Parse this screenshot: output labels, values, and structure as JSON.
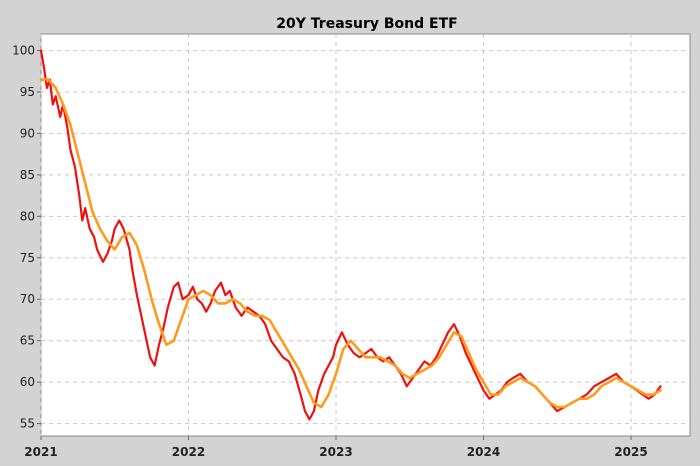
{
  "chart_data": {
    "type": "line",
    "title": "20Y Treasury Bond ETF",
    "xlabel": "",
    "ylabel": "",
    "xlim": [
      2021.0,
      2025.4
    ],
    "ylim": [
      53.5,
      102
    ],
    "x_ticks": [
      "2021",
      "2022",
      "2023",
      "2024",
      "2025"
    ],
    "y_ticks": [
      100,
      95,
      90,
      85,
      80,
      75,
      70,
      65,
      60,
      55
    ],
    "grid": true,
    "legend": "none",
    "colors": {
      "background": "#d3d3d3",
      "plot_area": "#ffffff",
      "grid": "#c8c8c8",
      "price": "#ee1111",
      "moving_average": "#ff9a1a"
    },
    "series": [
      {
        "style": "price",
        "x": [
          2021.0,
          2021.02,
          2021.04,
          2021.06,
          2021.08,
          2021.1,
          2021.13,
          2021.15,
          2021.18,
          2021.2,
          2021.23,
          2021.26,
          2021.28,
          2021.3,
          2021.33,
          2021.36,
          2021.38,
          2021.42,
          2021.45,
          2021.48,
          2021.5,
          2021.53,
          2021.56,
          2021.6,
          2021.62,
          2021.65,
          2021.68,
          2021.71,
          2021.74,
          2021.77,
          2021.8,
          2021.83,
          2021.86,
          2021.9,
          2021.93,
          2021.96,
          2022.0,
          2022.03,
          2022.06,
          2022.09,
          2022.12,
          2022.15,
          2022.18,
          2022.22,
          2022.25,
          2022.28,
          2022.32,
          2022.36,
          2022.4,
          2022.44,
          2022.48,
          2022.52,
          2022.56,
          2022.6,
          2022.64,
          2022.68,
          2022.72,
          2022.76,
          2022.79,
          2022.82,
          2022.85,
          2022.88,
          2022.92,
          2022.95,
          2022.98,
          2023.0,
          2023.04,
          2023.08,
          2023.12,
          2023.16,
          2023.2,
          2023.24,
          2023.28,
          2023.32,
          2023.36,
          2023.4,
          2023.44,
          2023.48,
          2023.52,
          2023.56,
          2023.6,
          2023.64,
          2023.68,
          2023.72,
          2023.76,
          2023.8,
          2023.84,
          2023.88,
          2023.92,
          2023.96,
          2024.0,
          2024.04,
          2024.08,
          2024.12,
          2024.16,
          2024.2,
          2024.25,
          2024.3,
          2024.35,
          2024.4,
          2024.45,
          2024.5,
          2024.55,
          2024.6,
          2024.65,
          2024.7,
          2024.75,
          2024.8,
          2024.85,
          2024.9,
          2024.95,
          2025.0,
          2025.04,
          2025.08,
          2025.12,
          2025.16,
          2025.2
        ],
        "y": [
          100.0,
          98.0,
          95.5,
          96.5,
          93.5,
          94.5,
          92.0,
          93.5,
          90.5,
          88.0,
          86.0,
          82.5,
          79.5,
          81.0,
          78.5,
          77.5,
          76.0,
          74.5,
          75.5,
          77.0,
          78.5,
          79.5,
          78.5,
          76.0,
          73.5,
          70.5,
          68.0,
          65.5,
          63.0,
          62.0,
          64.5,
          66.5,
          69.0,
          71.5,
          72.0,
          70.0,
          70.5,
          71.5,
          70.0,
          69.5,
          68.5,
          69.5,
          71.0,
          72.0,
          70.5,
          71.0,
          69.0,
          68.0,
          69.0,
          68.5,
          68.0,
          67.0,
          65.0,
          64.0,
          63.0,
          62.5,
          61.0,
          58.5,
          56.5,
          55.5,
          56.5,
          59.0,
          61.0,
          62.0,
          63.0,
          64.5,
          66.0,
          64.5,
          63.5,
          63.0,
          63.5,
          64.0,
          63.0,
          62.5,
          63.0,
          62.0,
          61.0,
          59.5,
          60.5,
          61.5,
          62.5,
          62.0,
          63.0,
          64.5,
          66.0,
          67.0,
          65.5,
          63.5,
          62.0,
          60.5,
          59.0,
          58.0,
          58.5,
          59.0,
          60.0,
          60.5,
          61.0,
          60.0,
          59.5,
          58.5,
          57.5,
          56.5,
          57.0,
          57.5,
          58.0,
          58.5,
          59.5,
          60.0,
          60.5,
          61.0,
          60.0,
          59.5,
          59.0,
          58.5,
          58.0,
          58.5,
          59.5
        ]
      },
      {
        "style": "moving_average",
        "x": [
          2021.0,
          2021.05,
          2021.1,
          2021.15,
          2021.2,
          2021.25,
          2021.3,
          2021.35,
          2021.4,
          2021.45,
          2021.5,
          2021.55,
          2021.6,
          2021.65,
          2021.7,
          2021.75,
          2021.8,
          2021.85,
          2021.9,
          2021.95,
          2022.0,
          2022.05,
          2022.1,
          2022.15,
          2022.2,
          2022.25,
          2022.3,
          2022.35,
          2022.4,
          2022.45,
          2022.5,
          2022.55,
          2022.6,
          2022.65,
          2022.7,
          2022.75,
          2022.8,
          2022.85,
          2022.9,
          2022.95,
          2023.0,
          2023.05,
          2023.1,
          2023.15,
          2023.2,
          2023.25,
          2023.3,
          2023.35,
          2023.4,
          2023.45,
          2023.5,
          2023.55,
          2023.6,
          2023.65,
          2023.7,
          2023.75,
          2023.8,
          2023.85,
          2023.9,
          2023.95,
          2024.0,
          2024.05,
          2024.1,
          2024.15,
          2024.2,
          2024.25,
          2024.3,
          2024.35,
          2024.4,
          2024.45,
          2024.5,
          2024.55,
          2024.6,
          2024.65,
          2024.7,
          2024.75,
          2024.8,
          2024.85,
          2024.9,
          2024.95,
          2025.0,
          2025.05,
          2025.1,
          2025.15,
          2025.2
        ],
        "y": [
          96.5,
          96.5,
          95.5,
          93.5,
          91.0,
          87.5,
          84.0,
          80.5,
          78.5,
          77.0,
          76.0,
          77.5,
          78.0,
          76.5,
          73.5,
          70.0,
          67.0,
          64.5,
          65.0,
          67.5,
          70.0,
          70.5,
          71.0,
          70.5,
          69.5,
          69.5,
          70.0,
          69.5,
          68.5,
          68.0,
          68.0,
          67.5,
          66.0,
          64.5,
          63.0,
          61.5,
          59.5,
          57.5,
          57.0,
          58.5,
          61.0,
          64.0,
          65.0,
          64.0,
          63.0,
          63.0,
          63.0,
          62.5,
          62.0,
          61.0,
          60.5,
          61.0,
          61.5,
          62.0,
          63.0,
          64.5,
          66.0,
          65.5,
          63.5,
          61.5,
          60.0,
          58.5,
          58.5,
          59.5,
          60.0,
          60.5,
          60.0,
          59.5,
          58.5,
          57.5,
          57.0,
          57.0,
          57.5,
          58.0,
          58.0,
          58.5,
          59.5,
          60.0,
          60.5,
          60.0,
          59.5,
          59.0,
          58.5,
          58.5,
          59.0
        ]
      }
    ]
  }
}
